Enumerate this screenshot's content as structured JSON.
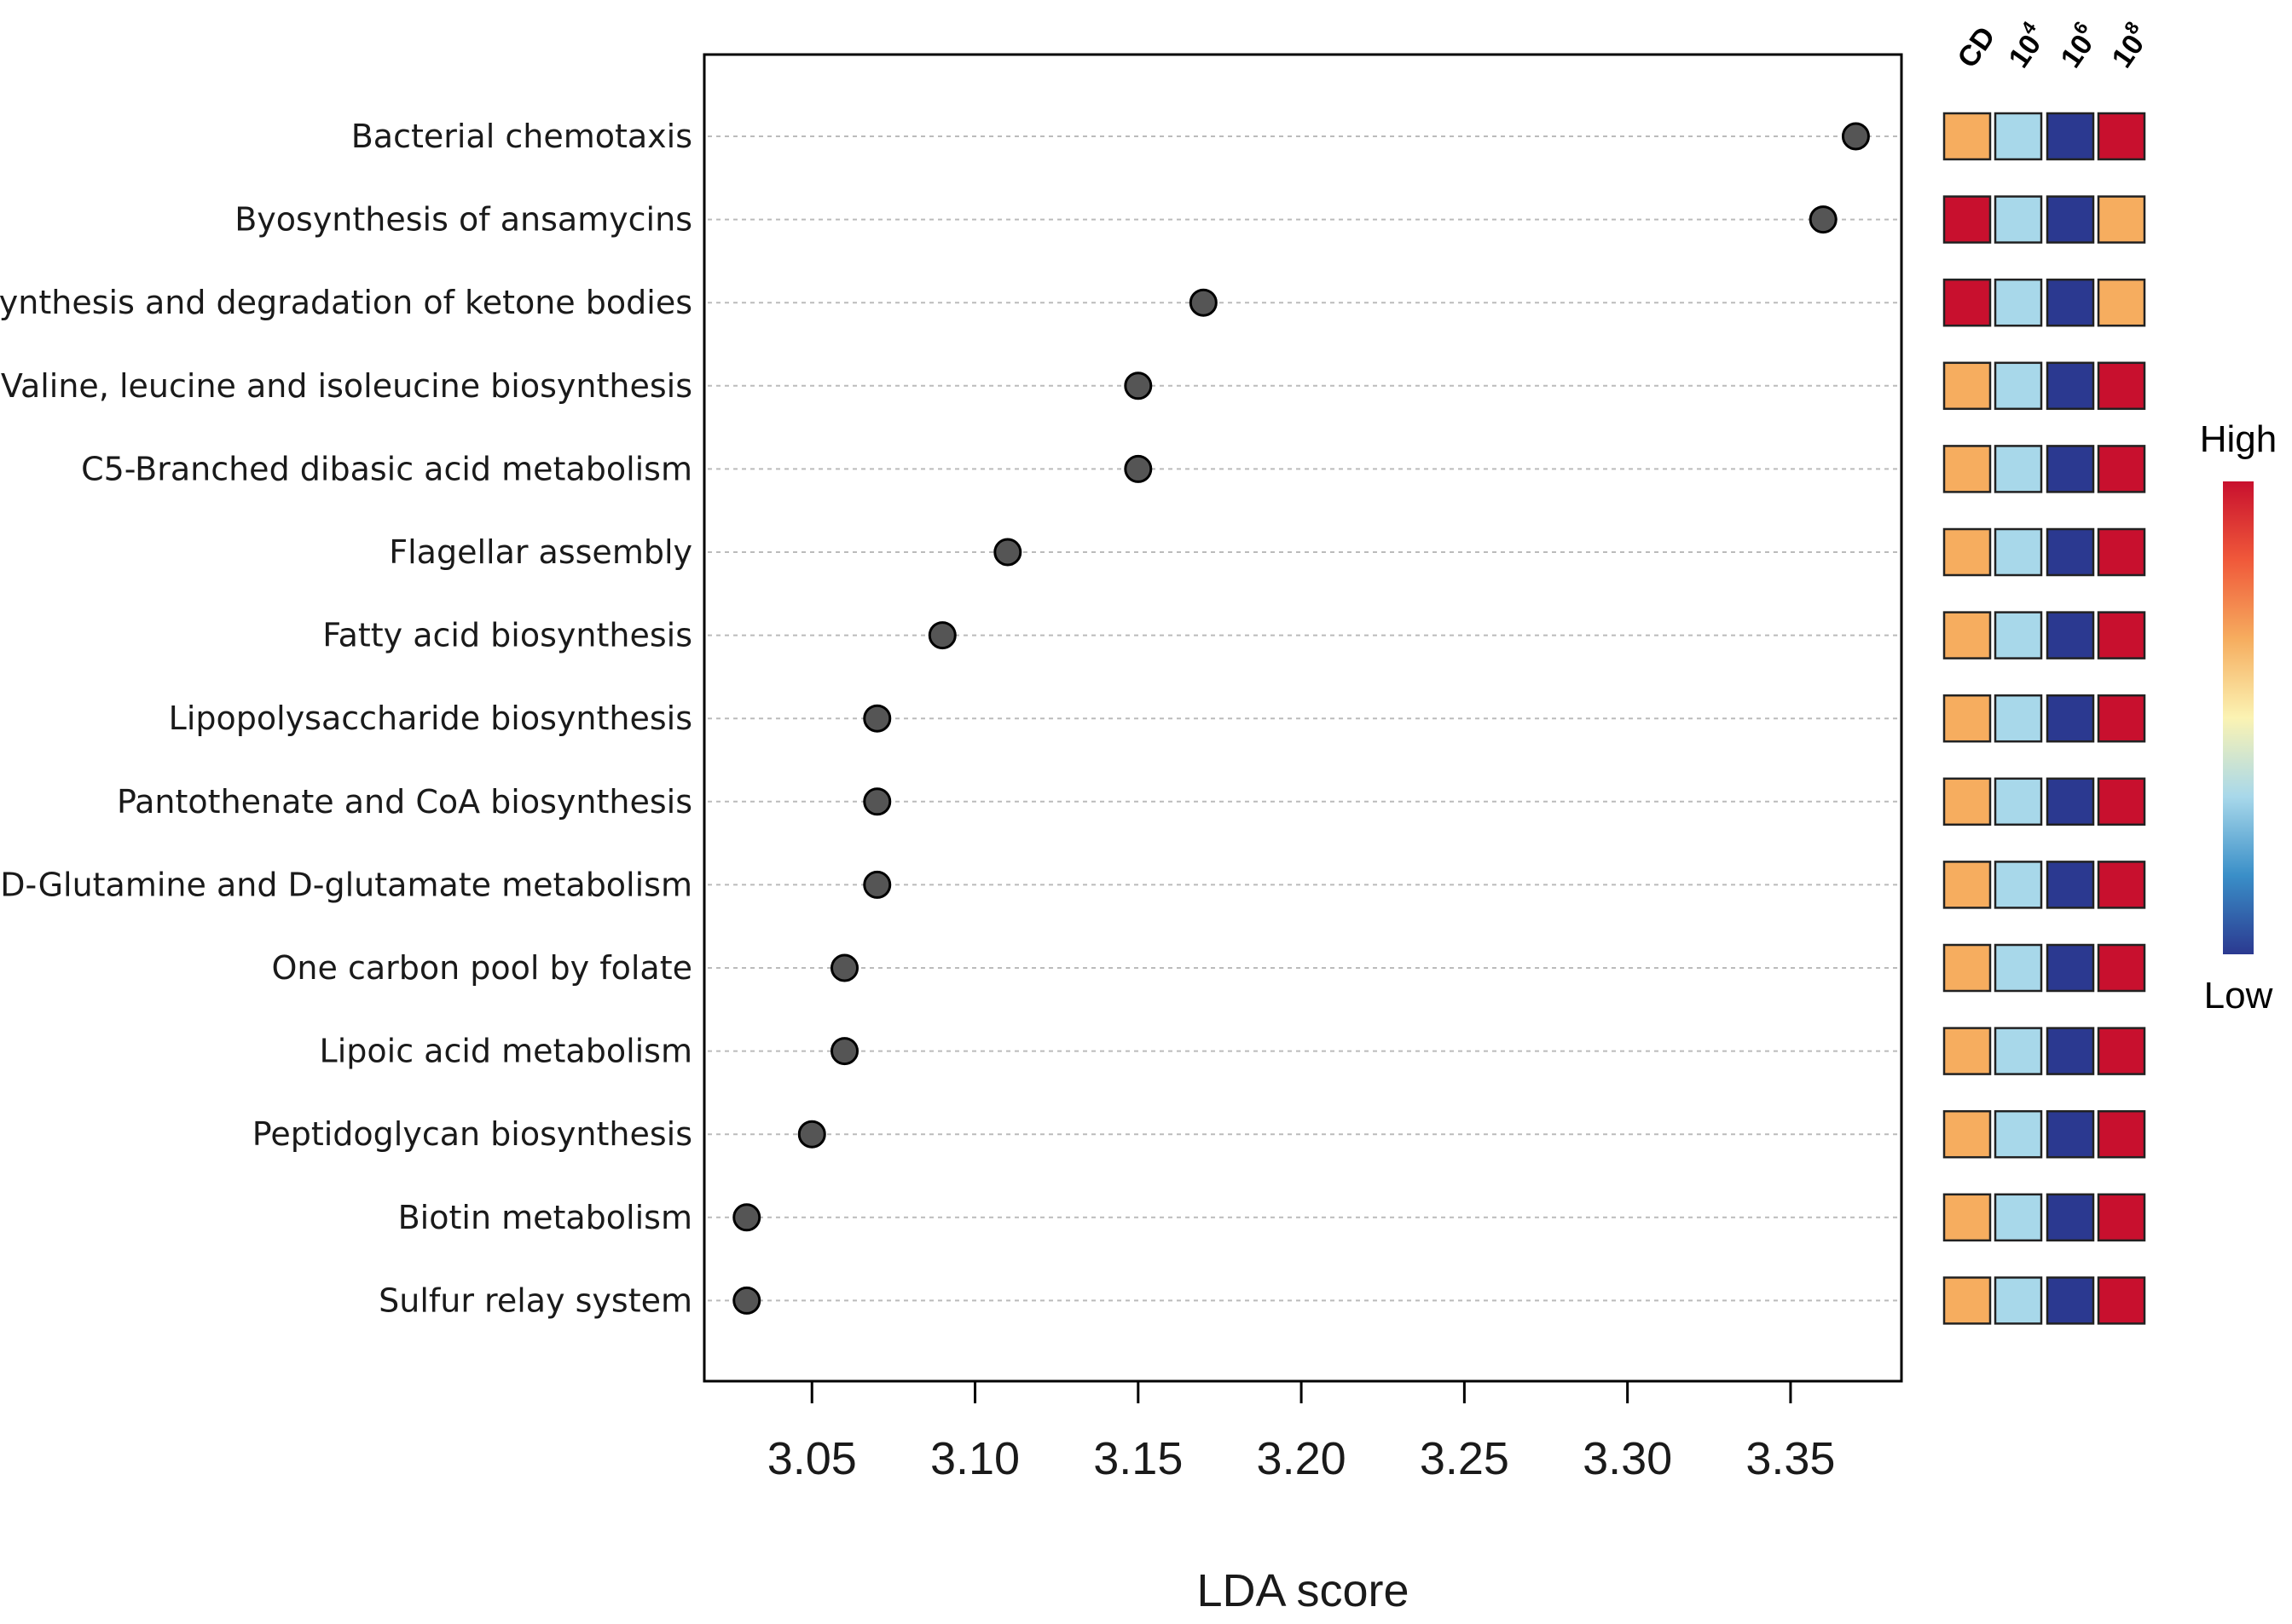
{
  "chart_data": {
    "type": "scatter",
    "xlabel": "LDA score",
    "x_ticks": [
      "3.05",
      "3.10",
      "3.15",
      "3.20",
      "3.25",
      "3.30",
      "3.35"
    ],
    "xlim": [
      3.017,
      3.384
    ],
    "grid": "horizontal dotted guide lines",
    "categories": [
      "Bacterial chemotaxis",
      "Byosynthesis of ansamycins",
      "Synthesis and degradation of ketone bodies",
      "Valine, leucine and isoleucine biosynthesis",
      "C5-Branched dibasic acid metabolism",
      "Flagellar assembly",
      "Fatty acid biosynthesis",
      "Lipopolysaccharide biosynthesis",
      "Pantothenate and CoA biosynthesis",
      "D-Glutamine and D-glutamate metabolism",
      "One carbon pool by folate",
      "Lipoic acid metabolism",
      "Peptidoglycan biosynthesis",
      "Biotin metabolism",
      "Sulfur relay system"
    ],
    "values": [
      3.37,
      3.36,
      3.17,
      3.15,
      3.15,
      3.11,
      3.09,
      3.07,
      3.07,
      3.07,
      3.06,
      3.06,
      3.05,
      3.03,
      3.03
    ],
    "point_color": "#555555",
    "heatmap": {
      "columns": [
        {
          "base": "CD",
          "sup": ""
        },
        {
          "base": "10",
          "sup": "4"
        },
        {
          "base": "10",
          "sup": "6"
        },
        {
          "base": "10",
          "sup": "8"
        }
      ],
      "colors": {
        "high": "#c8102e",
        "mid_high": "#f6ad5f",
        "mid_low": "#a8d8ea",
        "low": "#2b3990"
      },
      "rows": [
        [
          "mid_high",
          "mid_low",
          "low",
          "high"
        ],
        [
          "high",
          "mid_low",
          "low",
          "mid_high"
        ],
        [
          "high",
          "mid_low",
          "low",
          "mid_high"
        ],
        [
          "mid_high",
          "mid_low",
          "low",
          "high"
        ],
        [
          "mid_high",
          "mid_low",
          "low",
          "high"
        ],
        [
          "mid_high",
          "mid_low",
          "low",
          "high"
        ],
        [
          "mid_high",
          "mid_low",
          "low",
          "high"
        ],
        [
          "mid_high",
          "mid_low",
          "low",
          "high"
        ],
        [
          "mid_high",
          "mid_low",
          "low",
          "high"
        ],
        [
          "mid_high",
          "mid_low",
          "low",
          "high"
        ],
        [
          "mid_high",
          "mid_low",
          "low",
          "high"
        ],
        [
          "mid_high",
          "mid_low",
          "low",
          "high"
        ],
        [
          "mid_high",
          "mid_low",
          "low",
          "high"
        ],
        [
          "mid_high",
          "mid_low",
          "low",
          "high"
        ],
        [
          "mid_high",
          "mid_low",
          "low",
          "high"
        ]
      ]
    },
    "legend": {
      "high_label": "High",
      "low_label": "Low",
      "placement": "right",
      "gradient": [
        "#c8102e",
        "#f0593a",
        "#f6ad5f",
        "#fbf3b3",
        "#a8d8ea",
        "#3a8fc8",
        "#2b3990"
      ]
    }
  }
}
